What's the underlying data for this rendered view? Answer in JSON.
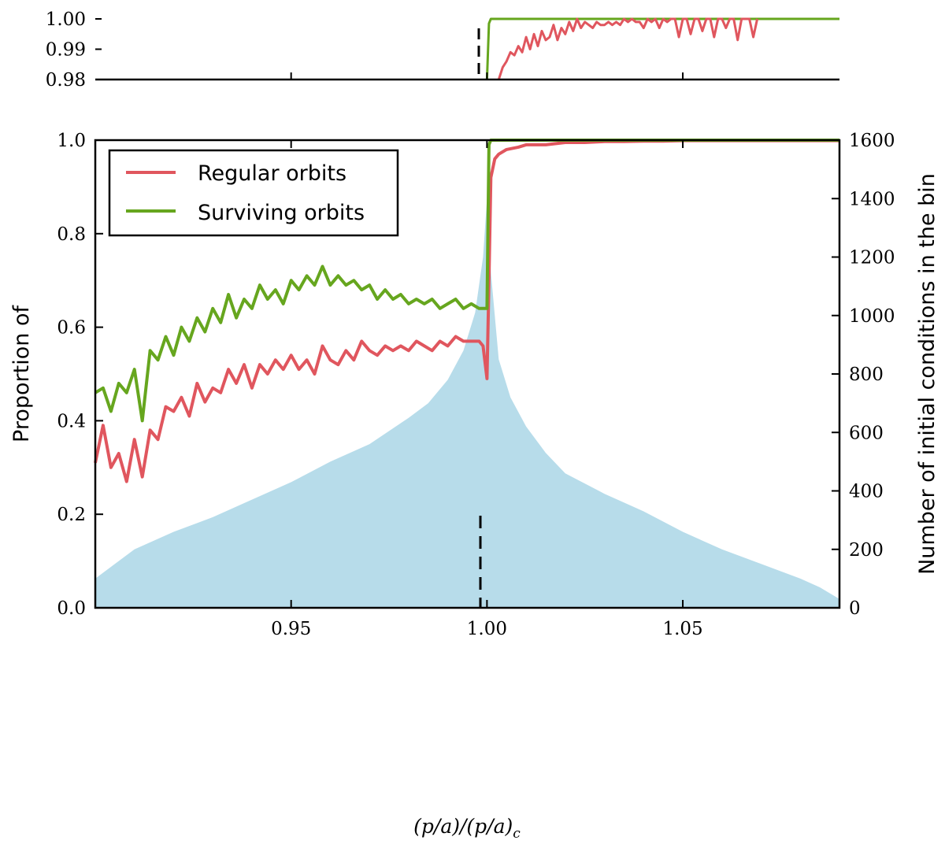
{
  "chart_data": [
    {
      "id": "inset",
      "type": "line",
      "title": "",
      "xlabel": "",
      "ylabel": "",
      "xlim": [
        0.9,
        1.09
      ],
      "ylim": [
        0.98,
        1.0
      ],
      "yticks": [
        0.98,
        0.99,
        1.0
      ],
      "ytick_labels": [
        "0.98",
        "0.99",
        "1.00"
      ],
      "xticks": [
        0.95,
        1.0,
        1.05
      ],
      "series": [
        {
          "name": "Surviving orbits",
          "color": "#66a61e",
          "x": [
            1.0,
            1.0005,
            1.001,
            1.09
          ],
          "y": [
            0.98,
            0.9985,
            1.0,
            1.0
          ]
        },
        {
          "name": "Regular orbits",
          "color": "#e0565e",
          "x": [
            1.003,
            1.004,
            1.005,
            1.006,
            1.007,
            1.008,
            1.009,
            1.01,
            1.011,
            1.012,
            1.013,
            1.014,
            1.015,
            1.016,
            1.017,
            1.018,
            1.019,
            1.02,
            1.021,
            1.022,
            1.023,
            1.024,
            1.025,
            1.026,
            1.027,
            1.028,
            1.029,
            1.03,
            1.031,
            1.032,
            1.033,
            1.034,
            1.035,
            1.036,
            1.037,
            1.038,
            1.039,
            1.04,
            1.041,
            1.042,
            1.043,
            1.044,
            1.045,
            1.046,
            1.047,
            1.048,
            1.049,
            1.05,
            1.051,
            1.052,
            1.053,
            1.054,
            1.055,
            1.056,
            1.057,
            1.058,
            1.059,
            1.06,
            1.061,
            1.062,
            1.063,
            1.064,
            1.065,
            1.066,
            1.067,
            1.068,
            1.069
          ],
          "y": [
            0.98,
            0.984,
            0.986,
            0.989,
            0.988,
            0.991,
            0.989,
            0.994,
            0.99,
            0.995,
            0.991,
            0.996,
            0.993,
            0.994,
            0.998,
            0.993,
            0.997,
            0.995,
            0.999,
            0.996,
            1.0,
            0.997,
            0.999,
            0.998,
            0.997,
            0.999,
            0.998,
            0.998,
            0.999,
            0.998,
            0.999,
            0.998,
            1.0,
            0.999,
            1.0,
            0.999,
            0.999,
            0.997,
            1.0,
            0.999,
            1.0,
            0.997,
            1.0,
            0.999,
            1.0,
            1.0,
            0.994,
            1.0,
            1.0,
            0.995,
            1.0,
            1.0,
            0.996,
            1.0,
            1.0,
            0.994,
            1.0,
            1.0,
            0.997,
            1.0,
            1.0,
            0.993,
            1.0,
            1.0,
            1.0,
            0.994,
            1.0
          ]
        }
      ],
      "annotations": [
        {
          "type": "dashed-vline",
          "x": 1.0
        }
      ]
    },
    {
      "id": "main",
      "type": "line",
      "title": "",
      "xlabel": "(p/a)/(p/a)c",
      "xlabel_parts": {
        "main": "(p/a)/(p/a)",
        "sub": "c"
      },
      "ylabel": "Proportion of",
      "ylabel_right": "Number of initial conditions in the bin",
      "xlim": [
        0.9,
        1.09
      ],
      "ylim": [
        0.0,
        1.0
      ],
      "ylim_right": [
        0,
        1600
      ],
      "xticks": [
        0.95,
        1.0,
        1.05
      ],
      "xtick_labels": [
        "0.95",
        "1.00",
        "1.05"
      ],
      "yticks": [
        0.0,
        0.2,
        0.4,
        0.6,
        0.8,
        1.0
      ],
      "ytick_labels": [
        "0.0",
        "0.2",
        "0.4",
        "0.6",
        "0.8",
        "1.0"
      ],
      "yticks_right": [
        0,
        200,
        400,
        600,
        800,
        1000,
        1200,
        1400,
        1600
      ],
      "ytick_labels_right": [
        "0",
        "200",
        "400",
        "600",
        "800",
        "1000",
        "1200",
        "1400",
        "1600"
      ],
      "legend": {
        "position": "top-left",
        "entries": [
          "Regular orbits",
          "Surviving orbits"
        ]
      },
      "series": [
        {
          "name": "Regular orbits",
          "color": "#e0565e",
          "x": [
            0.9,
            0.902,
            0.904,
            0.906,
            0.908,
            0.91,
            0.912,
            0.914,
            0.916,
            0.918,
            0.92,
            0.922,
            0.924,
            0.926,
            0.928,
            0.93,
            0.932,
            0.934,
            0.936,
            0.938,
            0.94,
            0.942,
            0.944,
            0.946,
            0.948,
            0.95,
            0.952,
            0.954,
            0.956,
            0.958,
            0.96,
            0.962,
            0.964,
            0.966,
            0.968,
            0.97,
            0.972,
            0.974,
            0.976,
            0.978,
            0.98,
            0.982,
            0.984,
            0.986,
            0.988,
            0.99,
            0.992,
            0.994,
            0.996,
            0.998,
            0.999,
            1.0,
            1.0005,
            1.001,
            1.002,
            1.003,
            1.005,
            1.008,
            1.01,
            1.015,
            1.02,
            1.025,
            1.03,
            1.035,
            1.04,
            1.045,
            1.05,
            1.055,
            1.06,
            1.065,
            1.07,
            1.075,
            1.08,
            1.085,
            1.09
          ],
          "y": [
            0.31,
            0.39,
            0.3,
            0.33,
            0.27,
            0.36,
            0.28,
            0.38,
            0.36,
            0.43,
            0.42,
            0.45,
            0.41,
            0.48,
            0.44,
            0.47,
            0.46,
            0.51,
            0.48,
            0.52,
            0.47,
            0.52,
            0.5,
            0.53,
            0.51,
            0.54,
            0.51,
            0.53,
            0.5,
            0.56,
            0.53,
            0.52,
            0.55,
            0.53,
            0.57,
            0.55,
            0.54,
            0.56,
            0.55,
            0.56,
            0.55,
            0.57,
            0.56,
            0.55,
            0.57,
            0.56,
            0.58,
            0.57,
            0.57,
            0.57,
            0.56,
            0.49,
            0.7,
            0.92,
            0.96,
            0.97,
            0.98,
            0.985,
            0.99,
            0.99,
            0.995,
            0.995,
            0.997,
            0.997,
            0.998,
            0.998,
            0.999,
            0.999,
            0.999,
            0.999,
            0.999,
            0.999,
            0.999,
            0.999,
            0.999
          ]
        },
        {
          "name": "Surviving orbits",
          "color": "#66a61e",
          "x": [
            0.9,
            0.902,
            0.904,
            0.906,
            0.908,
            0.91,
            0.912,
            0.914,
            0.916,
            0.918,
            0.92,
            0.922,
            0.924,
            0.926,
            0.928,
            0.93,
            0.932,
            0.934,
            0.936,
            0.938,
            0.94,
            0.942,
            0.944,
            0.946,
            0.948,
            0.95,
            0.952,
            0.954,
            0.956,
            0.958,
            0.96,
            0.962,
            0.964,
            0.966,
            0.968,
            0.97,
            0.972,
            0.974,
            0.976,
            0.978,
            0.98,
            0.982,
            0.984,
            0.986,
            0.988,
            0.99,
            0.992,
            0.994,
            0.996,
            0.998,
            0.999,
            1.0,
            1.0005,
            1.001,
            1.09
          ],
          "y": [
            0.46,
            0.47,
            0.42,
            0.48,
            0.46,
            0.51,
            0.4,
            0.55,
            0.53,
            0.58,
            0.54,
            0.6,
            0.57,
            0.62,
            0.59,
            0.64,
            0.61,
            0.67,
            0.62,
            0.66,
            0.64,
            0.69,
            0.66,
            0.68,
            0.65,
            0.7,
            0.68,
            0.71,
            0.69,
            0.73,
            0.69,
            0.71,
            0.69,
            0.7,
            0.68,
            0.69,
            0.66,
            0.68,
            0.66,
            0.67,
            0.65,
            0.66,
            0.65,
            0.66,
            0.64,
            0.65,
            0.66,
            0.64,
            0.65,
            0.64,
            0.64,
            0.64,
            0.99,
            1.0,
            1.0
          ]
        },
        {
          "name": "Number of initial conditions in the bin",
          "type": "area",
          "axis": "right",
          "color": "#b7dcea",
          "x": [
            0.9,
            0.905,
            0.91,
            0.92,
            0.93,
            0.94,
            0.95,
            0.96,
            0.97,
            0.98,
            0.985,
            0.99,
            0.994,
            0.997,
            0.999,
            1.0,
            1.001,
            1.003,
            1.006,
            1.01,
            1.015,
            1.02,
            1.03,
            1.04,
            1.05,
            1.06,
            1.07,
            1.08,
            1.085,
            1.09
          ],
          "y": [
            100,
            150,
            200,
            260,
            310,
            370,
            430,
            500,
            560,
            650,
            700,
            780,
            880,
            1010,
            1200,
            1400,
            1150,
            850,
            720,
            620,
            530,
            460,
            390,
            330,
            260,
            200,
            150,
            100,
            70,
            30
          ]
        }
      ],
      "annotations": [
        {
          "type": "dashed-vline",
          "x": 1.0
        }
      ]
    }
  ]
}
